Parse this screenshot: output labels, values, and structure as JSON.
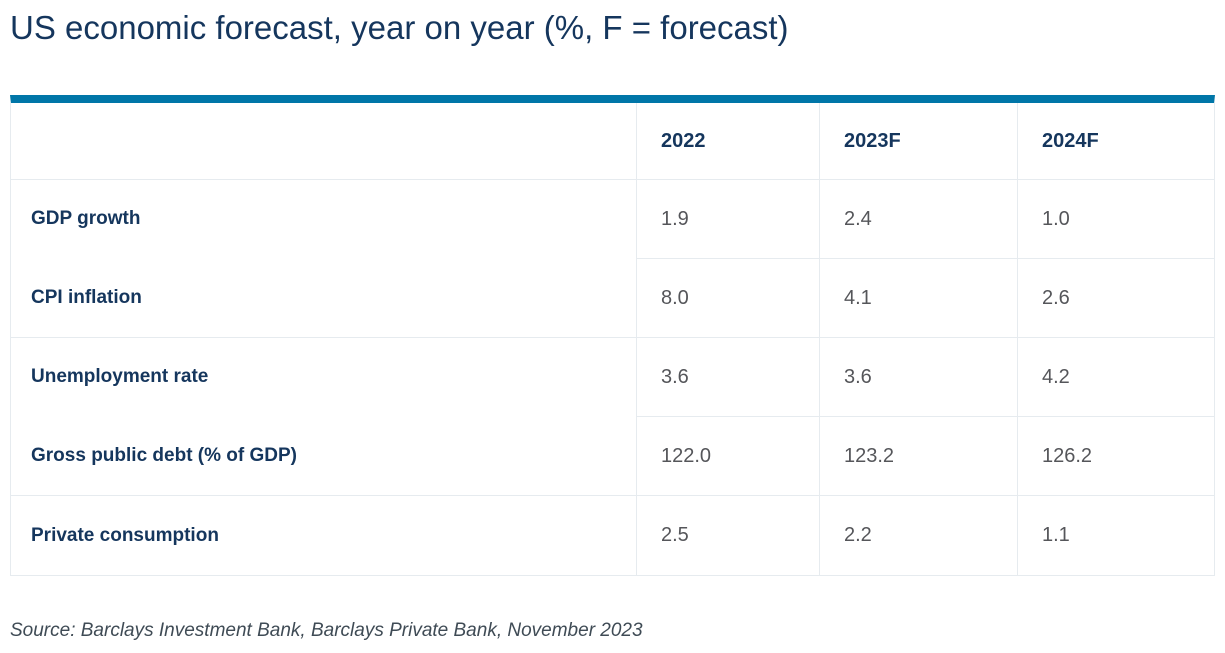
{
  "chart_data": {
    "type": "table",
    "title": "US economic forecast, year on year (%, F = forecast)",
    "columns": [
      "",
      "2022",
      "2023F",
      "2024F"
    ],
    "rows": [
      {
        "label": "GDP growth",
        "values": [
          "1.9",
          "2.4",
          "1.0"
        ]
      },
      {
        "label": "CPI inflation",
        "values": [
          "8.0",
          "4.1",
          "2.6"
        ]
      },
      {
        "label": "Unemployment rate",
        "values": [
          "3.6",
          "3.6",
          "4.2"
        ]
      },
      {
        "label": "Gross public debt (% of GDP)",
        "values": [
          "122.0",
          "123.2",
          "126.2"
        ]
      },
      {
        "label": "Private consumption",
        "values": [
          "2.5",
          "2.2",
          "1.1"
        ]
      }
    ],
    "source": "Source: Barclays Investment Bank, Barclays Private Bank, November 2023"
  },
  "colors": {
    "accent_bar": "#0076a8",
    "heading_text": "#15365d",
    "value_text": "#55565a",
    "border": "#e6ebef"
  }
}
